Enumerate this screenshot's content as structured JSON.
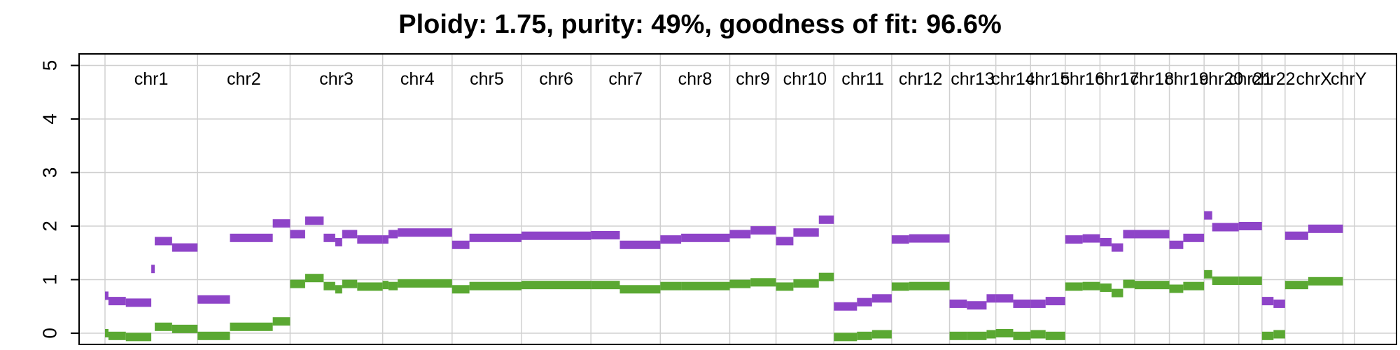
{
  "chart_data": {
    "type": "scatter",
    "title": "Ploidy: 1.75, purity: 49%, goodness of fit: 96.6%",
    "xlabel": "",
    "ylabel": "",
    "ylim": [
      0,
      5
    ],
    "yticks": [
      "0",
      "1",
      "2",
      "3",
      "4",
      "5"
    ],
    "grid": true,
    "legend": "none",
    "chromosome_labels": [
      "chr1",
      "chr2",
      "chr3",
      "chr4",
      "chr5",
      "chr6",
      "chr7",
      "chr8",
      "chr9",
      "chr10",
      "chr11",
      "chr12",
      "chr13",
      "chr14",
      "chr15",
      "chr16",
      "chr17",
      "chr18",
      "chr19",
      "chr20",
      "chr21",
      "chr22",
      "chrX",
      "chrY"
    ],
    "chromosome_extents": [
      [
        0,
        8
      ],
      [
        8,
        16
      ],
      [
        16,
        24
      ],
      [
        24,
        30
      ],
      [
        30,
        36
      ],
      [
        36,
        42
      ],
      [
        42,
        48
      ],
      [
        48,
        54
      ],
      [
        54,
        58
      ],
      [
        58,
        63
      ],
      [
        63,
        68
      ],
      [
        68,
        73
      ],
      [
        73,
        77
      ],
      [
        77,
        80
      ],
      [
        80,
        83
      ],
      [
        83,
        86
      ],
      [
        86,
        89
      ],
      [
        89,
        92
      ],
      [
        92,
        95
      ],
      [
        95,
        98
      ],
      [
        98,
        100
      ],
      [
        100,
        102
      ],
      [
        102,
        107
      ],
      [
        107,
        108
      ]
    ],
    "x_range": [
      0,
      108
    ],
    "series": [
      {
        "color": "#8e44c8",
        "segments": [
          [
            0,
            0.3,
            0.7
          ],
          [
            0.3,
            1.8,
            0.6
          ],
          [
            1.8,
            4.0,
            0.57
          ],
          [
            4.0,
            4.3,
            1.2
          ],
          [
            4.3,
            5.8,
            1.72
          ],
          [
            5.8,
            8.0,
            1.6
          ],
          [
            8.0,
            10.8,
            0.63
          ],
          [
            10.8,
            14.5,
            1.78
          ],
          [
            14.5,
            16.0,
            2.05
          ],
          [
            16.0,
            17.3,
            1.85
          ],
          [
            17.3,
            18.9,
            2.1
          ],
          [
            18.9,
            19.9,
            1.78
          ],
          [
            19.9,
            20.5,
            1.7
          ],
          [
            20.5,
            21.8,
            1.85
          ],
          [
            21.8,
            24.0,
            1.75
          ],
          [
            24.0,
            24.5,
            1.75
          ],
          [
            24.5,
            25.3,
            1.85
          ],
          [
            25.3,
            30.0,
            1.88
          ],
          [
            30.0,
            31.5,
            1.65
          ],
          [
            31.5,
            36.0,
            1.78
          ],
          [
            36.0,
            42.0,
            1.82
          ],
          [
            42.0,
            44.5,
            1.83
          ],
          [
            44.5,
            48.0,
            1.65
          ],
          [
            48.0,
            49.8,
            1.75
          ],
          [
            49.8,
            54.0,
            1.78
          ],
          [
            54.0,
            55.8,
            1.85
          ],
          [
            55.8,
            58.0,
            1.92
          ],
          [
            58.0,
            59.5,
            1.72
          ],
          [
            59.5,
            61.7,
            1.88
          ],
          [
            61.7,
            63.0,
            2.12
          ],
          [
            63.0,
            65.0,
            0.5
          ],
          [
            65.0,
            66.3,
            0.58
          ],
          [
            66.3,
            68.0,
            0.65
          ],
          [
            68.0,
            69.5,
            1.75
          ],
          [
            69.5,
            73.0,
            1.77
          ],
          [
            73.0,
            74.5,
            0.55
          ],
          [
            74.5,
            76.2,
            0.52
          ],
          [
            76.2,
            77.0,
            0.65
          ],
          [
            77.0,
            78.5,
            0.65
          ],
          [
            78.5,
            80.0,
            0.55
          ],
          [
            80.0,
            81.3,
            0.55
          ],
          [
            81.3,
            83.0,
            0.6
          ],
          [
            83.0,
            84.5,
            1.75
          ],
          [
            84.5,
            86.0,
            1.77
          ],
          [
            86.0,
            87.0,
            1.7
          ],
          [
            87.0,
            88.0,
            1.6
          ],
          [
            88.0,
            89.0,
            1.85
          ],
          [
            89.0,
            92.0,
            1.85
          ],
          [
            92.0,
            93.2,
            1.65
          ],
          [
            93.2,
            95.0,
            1.78
          ],
          [
            95.0,
            95.7,
            2.2
          ],
          [
            95.7,
            98.0,
            1.98
          ],
          [
            98.0,
            100.0,
            2.0
          ],
          [
            100.0,
            101.0,
            0.6
          ],
          [
            101.0,
            102.0,
            0.55
          ],
          [
            102.0,
            104.0,
            1.82
          ],
          [
            104.0,
            107.0,
            1.95
          ]
        ]
      },
      {
        "color": "#5aa832",
        "segments": [
          [
            0,
            0.3,
            0.0
          ],
          [
            0.3,
            1.8,
            -0.05
          ],
          [
            1.8,
            4.0,
            -0.07
          ],
          [
            4.3,
            5.8,
            0.12
          ],
          [
            5.8,
            8.0,
            0.08
          ],
          [
            8.0,
            10.8,
            -0.05
          ],
          [
            10.8,
            14.5,
            0.12
          ],
          [
            14.5,
            16.0,
            0.22
          ],
          [
            16.0,
            17.3,
            0.92
          ],
          [
            17.3,
            18.9,
            1.03
          ],
          [
            18.9,
            19.9,
            0.88
          ],
          [
            19.9,
            20.5,
            0.82
          ],
          [
            20.5,
            21.8,
            0.92
          ],
          [
            21.8,
            24.0,
            0.87
          ],
          [
            24.0,
            24.5,
            0.9
          ],
          [
            24.5,
            25.3,
            0.88
          ],
          [
            25.3,
            30.0,
            0.93
          ],
          [
            30.0,
            31.5,
            0.82
          ],
          [
            31.5,
            36.0,
            0.88
          ],
          [
            36.0,
            42.0,
            0.9
          ],
          [
            42.0,
            44.5,
            0.9
          ],
          [
            44.5,
            48.0,
            0.82
          ],
          [
            48.0,
            49.8,
            0.88
          ],
          [
            49.8,
            54.0,
            0.88
          ],
          [
            54.0,
            55.8,
            0.92
          ],
          [
            55.8,
            58.0,
            0.95
          ],
          [
            58.0,
            59.5,
            0.87
          ],
          [
            59.5,
            61.7,
            0.93
          ],
          [
            61.7,
            63.0,
            1.05
          ],
          [
            63.0,
            65.0,
            -0.07
          ],
          [
            65.0,
            66.3,
            -0.05
          ],
          [
            66.3,
            68.0,
            -0.02
          ],
          [
            68.0,
            69.5,
            0.87
          ],
          [
            69.5,
            73.0,
            0.88
          ],
          [
            73.0,
            74.5,
            -0.05
          ],
          [
            74.5,
            76.2,
            -0.05
          ],
          [
            76.2,
            77.0,
            -0.02
          ],
          [
            77.0,
            78.5,
            0.0
          ],
          [
            78.5,
            80.0,
            -0.05
          ],
          [
            80.0,
            81.3,
            -0.02
          ],
          [
            81.3,
            83.0,
            -0.05
          ],
          [
            83.0,
            84.5,
            0.87
          ],
          [
            84.5,
            86.0,
            0.88
          ],
          [
            86.0,
            87.0,
            0.85
          ],
          [
            87.0,
            88.0,
            0.75
          ],
          [
            88.0,
            89.0,
            0.92
          ],
          [
            89.0,
            92.0,
            0.9
          ],
          [
            92.0,
            93.2,
            0.83
          ],
          [
            93.2,
            95.0,
            0.88
          ],
          [
            95.0,
            95.7,
            1.1
          ],
          [
            95.7,
            98.0,
            0.98
          ],
          [
            98.0,
            100.0,
            0.98
          ],
          [
            100.0,
            101.0,
            -0.05
          ],
          [
            101.0,
            102.0,
            -0.02
          ],
          [
            102.0,
            104.0,
            0.9
          ],
          [
            104.0,
            107.0,
            0.97
          ]
        ]
      }
    ]
  },
  "colors": {
    "series_purple": "#8e44c8",
    "series_green": "#5aa832",
    "grid": "#d0d0d0",
    "axis": "#000000"
  }
}
